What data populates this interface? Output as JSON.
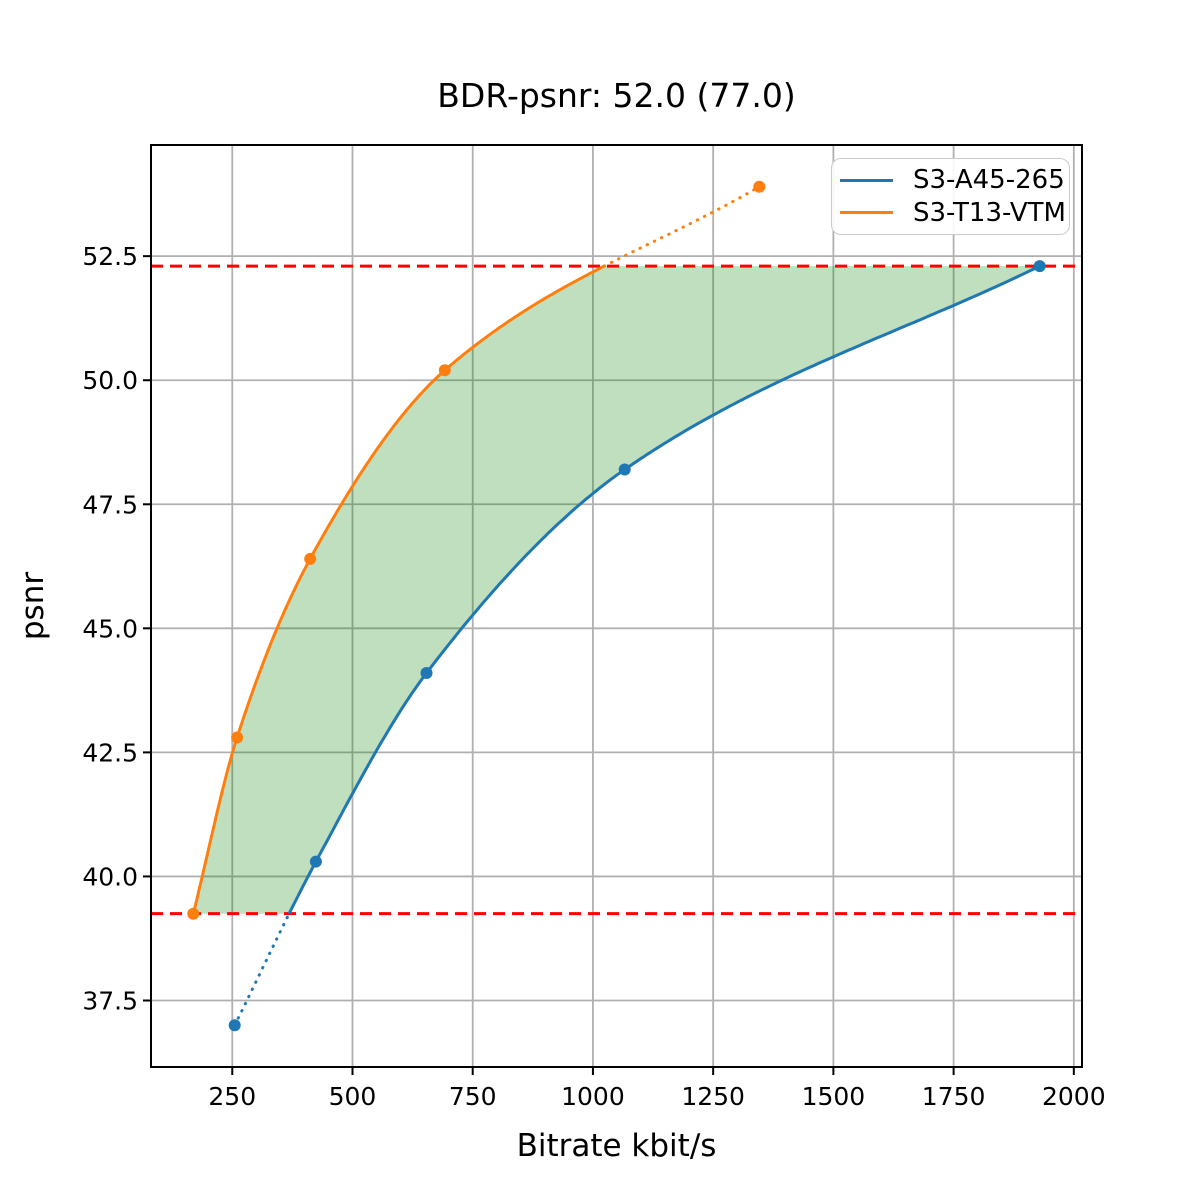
{
  "chart_data": {
    "type": "line",
    "title": "BDR-psnr: 52.0 (77.0)",
    "xlabel": "Bitrate kbit/s",
    "ylabel": "psnr",
    "xlim": [
      81,
      2017
    ],
    "ylim": [
      36.16,
      54.74
    ],
    "xticks": [
      250,
      500,
      750,
      1000,
      1250,
      1500,
      1750,
      2000
    ],
    "yticks": [
      37.5,
      40.0,
      42.5,
      45.0,
      47.5,
      50.0,
      52.5
    ],
    "grid": true,
    "grid_color": "#b0b0b0",
    "legend_position": "upper right",
    "series": [
      {
        "name": "S3-A45-265",
        "color": "#1f77b4",
        "x": [
          255,
          424,
          654,
          1066,
          1929
        ],
        "y": [
          37.0,
          40.3,
          44.1,
          48.2,
          52.3
        ]
      },
      {
        "name": "S3-T13-VTM",
        "color": "#ff7f0e",
        "x": [
          169,
          260,
          412,
          692,
          1346
        ],
        "y": [
          39.25,
          42.8,
          46.4,
          50.2,
          53.9
        ]
      }
    ],
    "overlap_lines": {
      "color": "#ff0000",
      "style": "dashed",
      "lower": 39.25,
      "upper": 52.3
    },
    "fill_between": {
      "color": "#008000",
      "alpha": 0.25
    }
  }
}
